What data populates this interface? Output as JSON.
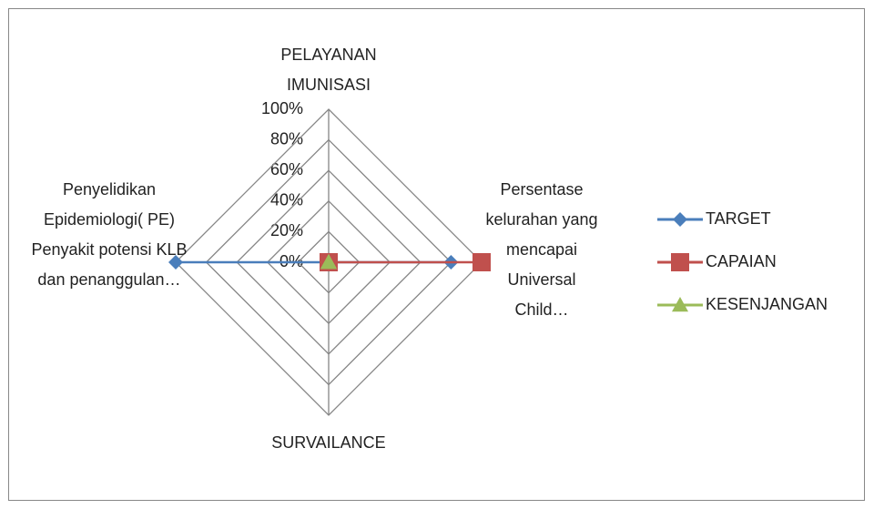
{
  "chart_data": {
    "type": "radar",
    "categories": [
      "PELAYANAN IMUNISASI",
      "Persentase kelurahan yang mencapai Universal Child…",
      "SURVAILANCE",
      "Penyelidikan Epidemiologi( PE) Penyakit potensi KLB dan penanggulan…"
    ],
    "series": [
      {
        "name": "TARGET",
        "color": "#4a7ebb",
        "marker": "diamond",
        "values": [
          0,
          80,
          0,
          100
        ]
      },
      {
        "name": "CAPAIAN",
        "color": "#c0504d",
        "marker": "square",
        "values": [
          0,
          100,
          0,
          0
        ]
      },
      {
        "name": "KESENJANGAN",
        "color": "#9bbb59",
        "marker": "triangle",
        "values": [
          0,
          0,
          0,
          0
        ]
      }
    ],
    "rlim": [
      0,
      100
    ],
    "rticks": [
      {
        "value": 0,
        "label": "0%"
      },
      {
        "value": 20,
        "label": "20%"
      },
      {
        "value": 40,
        "label": "40%"
      },
      {
        "value": 60,
        "label": "60%"
      },
      {
        "value": 80,
        "label": "80%"
      },
      {
        "value": 100,
        "label": "100%"
      }
    ],
    "legend": "right"
  }
}
